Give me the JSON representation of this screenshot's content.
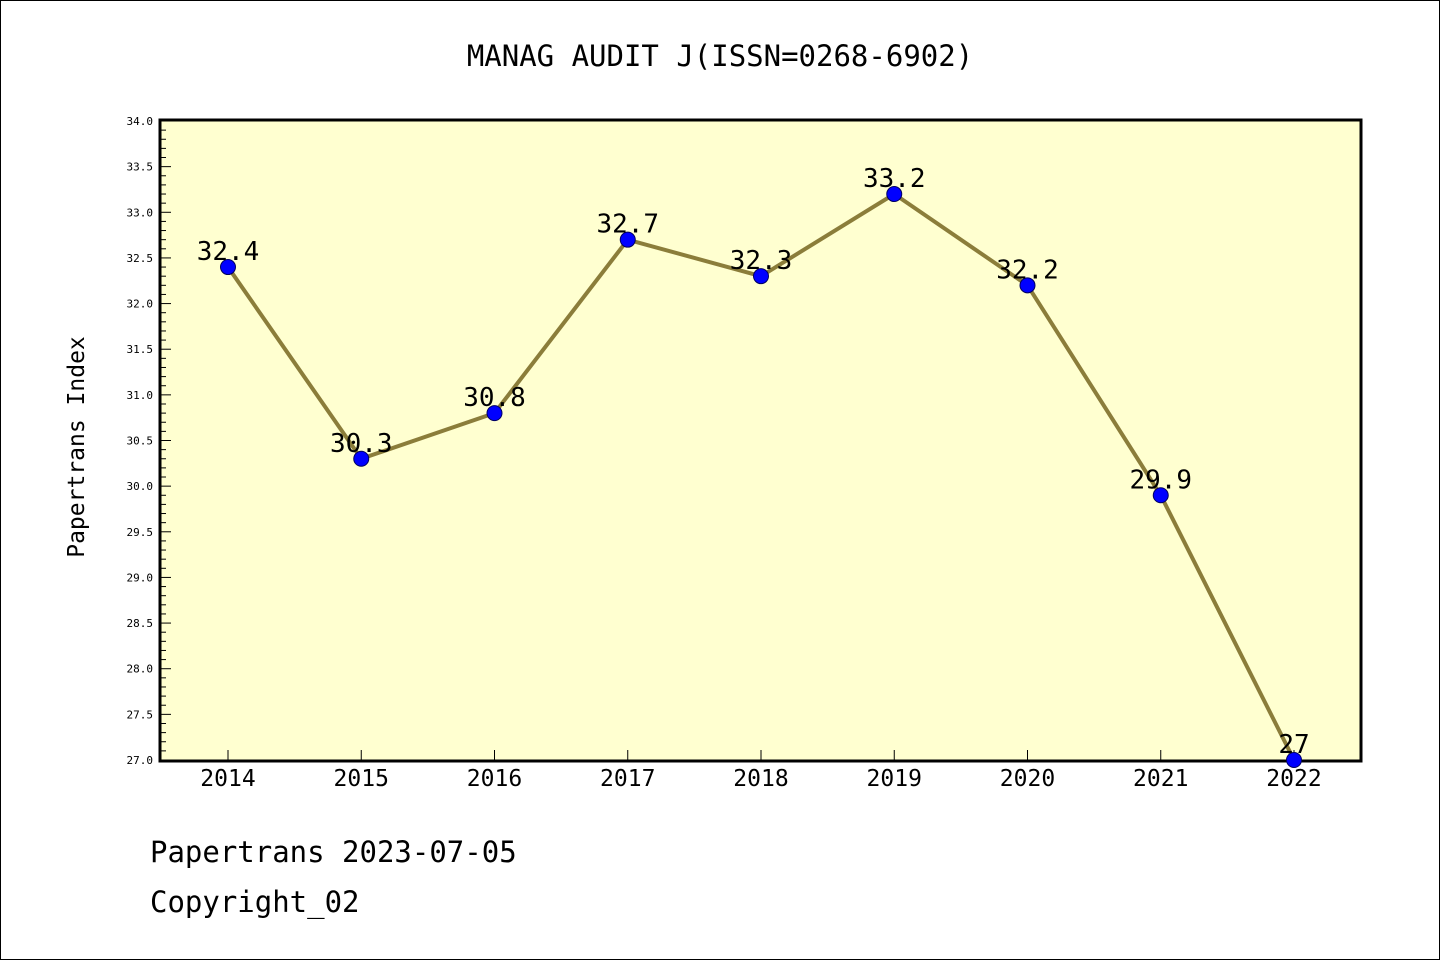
{
  "chart_data": {
    "type": "line",
    "title": "MANAG AUDIT J(ISSN=0268-6902)",
    "xlabel": "",
    "ylabel": "Papertrans Index",
    "categories": [
      "2014",
      "2015",
      "2016",
      "2017",
      "2018",
      "2019",
      "2020",
      "2021",
      "2022"
    ],
    "series": [
      {
        "values": [
          32.4,
          30.3,
          30.8,
          32.7,
          32.3,
          33.2,
          32.2,
          29.9,
          27
        ],
        "labels": [
          "32.4",
          "30.3",
          "30.8",
          "32.7",
          "32.3",
          "33.2",
          "32.2",
          "29.9",
          "27"
        ]
      }
    ],
    "ylim": [
      27.0,
      34.0
    ],
    "yticks": [
      "27.0",
      "27.5",
      "28.0",
      "28.5",
      "29.0",
      "29.5",
      "30.0",
      "30.5",
      "31.0",
      "31.5",
      "32.0",
      "32.5",
      "33.0",
      "33.5",
      "34.0"
    ],
    "grid": false,
    "legend": "none",
    "colors": {
      "plot_background": "#ffffd0",
      "line": "#8b7d3a",
      "marker": "#0000ff"
    }
  },
  "footer": {
    "date_line": "Papertrans 2023-07-05",
    "copyright_line": "Copyright_02"
  }
}
